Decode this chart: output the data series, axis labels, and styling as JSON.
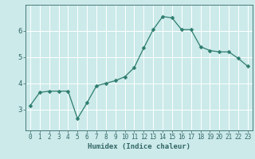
{
  "x": [
    0,
    1,
    2,
    3,
    4,
    5,
    6,
    7,
    8,
    9,
    10,
    11,
    12,
    13,
    14,
    15,
    16,
    17,
    18,
    19,
    20,
    21,
    22,
    23
  ],
  "y": [
    3.15,
    3.65,
    3.7,
    3.7,
    3.7,
    2.65,
    3.25,
    3.9,
    4.0,
    4.1,
    4.25,
    4.6,
    5.35,
    6.05,
    6.55,
    6.5,
    6.05,
    6.05,
    5.4,
    5.25,
    5.2,
    5.2,
    4.95,
    4.65
  ],
  "line_color": "#2e7d6e",
  "marker": "D",
  "marker_size": 2.5,
  "bg_color": "#cceaea",
  "grid_color": "#ffffff",
  "axis_color": "#2e7d6e",
  "tick_color": "#336666",
  "xlabel": "Humidex (Indice chaleur)",
  "ylim": [
    2.2,
    7.0
  ],
  "xlim": [
    -0.5,
    23.5
  ],
  "yticks": [
    3,
    4,
    5,
    6
  ],
  "xticks": [
    0,
    1,
    2,
    3,
    4,
    5,
    6,
    7,
    8,
    9,
    10,
    11,
    12,
    13,
    14,
    15,
    16,
    17,
    18,
    19,
    20,
    21,
    22,
    23
  ],
  "xlabel_fontsize": 6.5,
  "xtick_fontsize": 5.5,
  "ytick_fontsize": 6.5
}
